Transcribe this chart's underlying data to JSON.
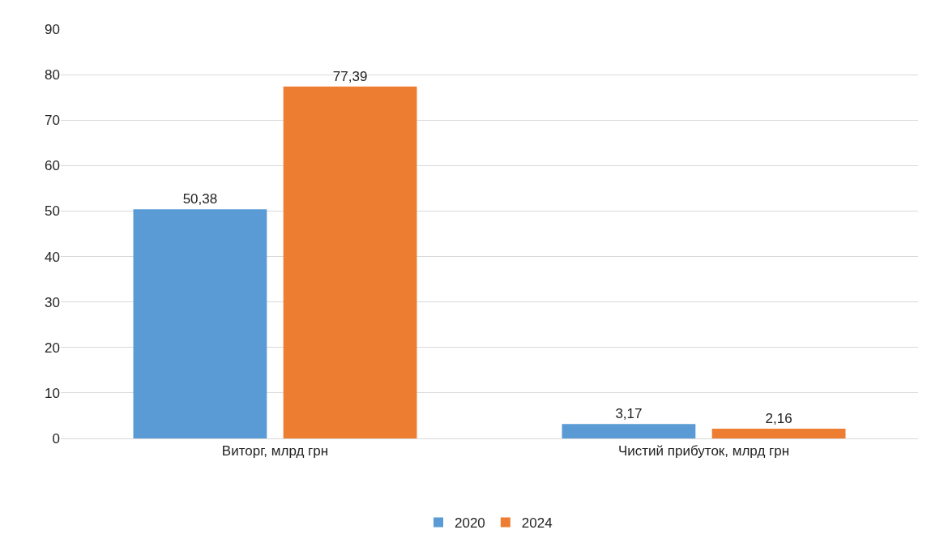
{
  "chart_data": {
    "type": "bar",
    "categories": [
      "Виторг, млрд грн",
      "Чистий прибуток, млрд грн"
    ],
    "series": [
      {
        "name": "2020",
        "color": "#5b9bd5",
        "values": [
          50.38,
          3.17
        ],
        "value_labels": [
          "50,38",
          "3,17"
        ]
      },
      {
        "name": "2024",
        "color": "#ed7d31",
        "values": [
          77.39,
          2.16
        ],
        "value_labels": [
          "77,39",
          "2,16"
        ]
      }
    ],
    "ylim": [
      0,
      90
    ],
    "yticks": [
      0,
      10,
      20,
      30,
      40,
      50,
      60,
      70,
      80,
      90
    ],
    "grid": "y",
    "legend": "bottom"
  }
}
